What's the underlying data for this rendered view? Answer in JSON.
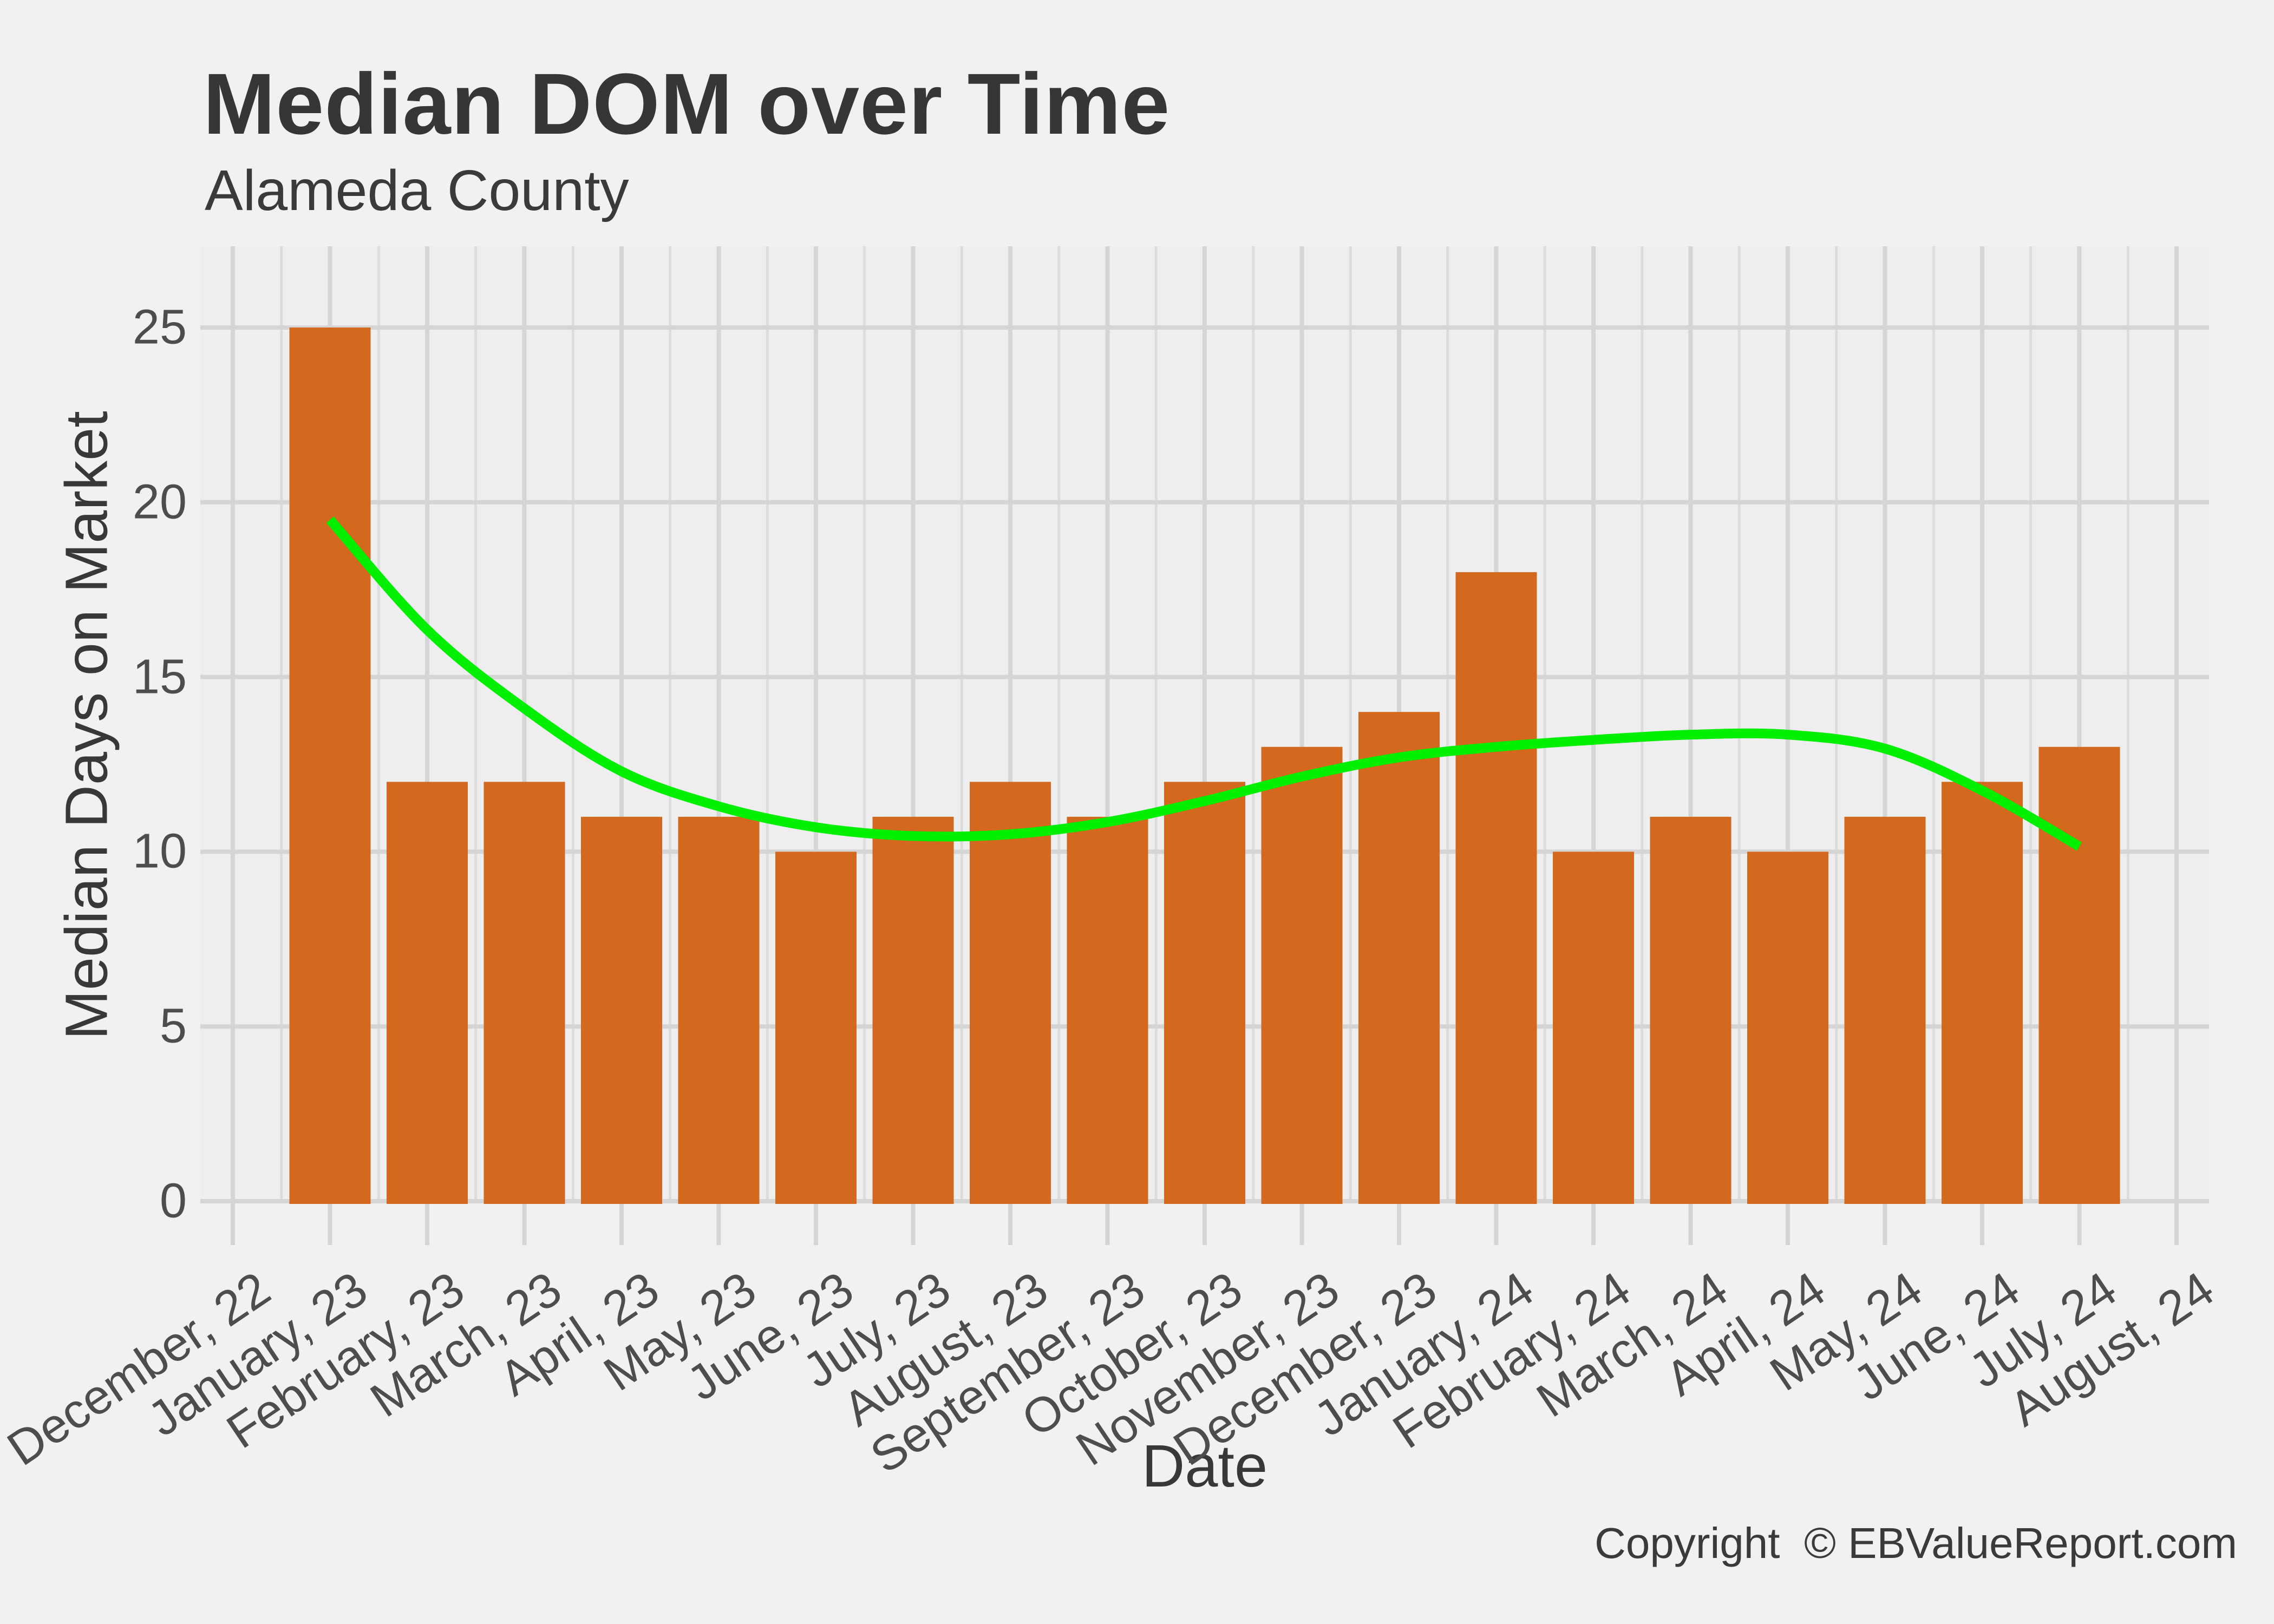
{
  "header": {
    "title": "Median DOM over Time",
    "subtitle": "Alameda County"
  },
  "footer": {
    "copyright": "Copyright  © EBValueReport.com"
  },
  "chart_data": {
    "type": "bar",
    "title": "Median DOM over Time",
    "subtitle": "Alameda County",
    "xlabel": "Date",
    "ylabel": "Median Days on Market",
    "categories": [
      "December, 22",
      "January, 23",
      "February, 23",
      "March, 23",
      "April, 23",
      "May, 23",
      "June, 23",
      "July, 23",
      "August, 23",
      "September, 23",
      "October, 23",
      "November, 23",
      "December, 23",
      "January, 24",
      "February, 24",
      "March, 24",
      "April, 24",
      "May, 24",
      "June, 24",
      "July, 24",
      "August, 24"
    ],
    "bar_values": [
      null,
      25,
      12,
      12,
      11,
      11,
      10,
      11,
      12,
      11,
      12,
      13,
      14,
      18,
      10,
      11,
      10,
      11,
      12,
      13,
      null
    ],
    "smooth_line": {
      "name": "trend-line",
      "category_index": [
        1,
        2,
        3,
        4,
        5,
        6,
        7,
        8,
        9,
        10,
        11,
        12,
        13,
        14,
        15,
        16,
        17,
        18,
        19
      ],
      "values": [
        19.5,
        16.35,
        14.1,
        12.3,
        11.3,
        10.7,
        10.45,
        10.5,
        10.85,
        11.45,
        12.15,
        12.7,
        13.0,
        13.2,
        13.35,
        13.35,
        12.95,
        11.75,
        10.15
      ]
    },
    "ylim": [
      0,
      27.3
    ],
    "yticks": [
      0,
      5,
      10,
      15,
      20,
      25
    ],
    "grid": {
      "major_x": true,
      "major_y": true,
      "minor_x": true,
      "minor_y": false
    },
    "legend": "none",
    "colors": {
      "bar": "#D2691E",
      "line": "#00EE00",
      "page_bg": "#F1F1F1",
      "panel_bg": "#EEEEEE",
      "grid_major": "#D5D5D5",
      "grid_minor": "#DCDCDC",
      "tick_text": "#4D4D4D",
      "title_text": "#363636"
    }
  }
}
